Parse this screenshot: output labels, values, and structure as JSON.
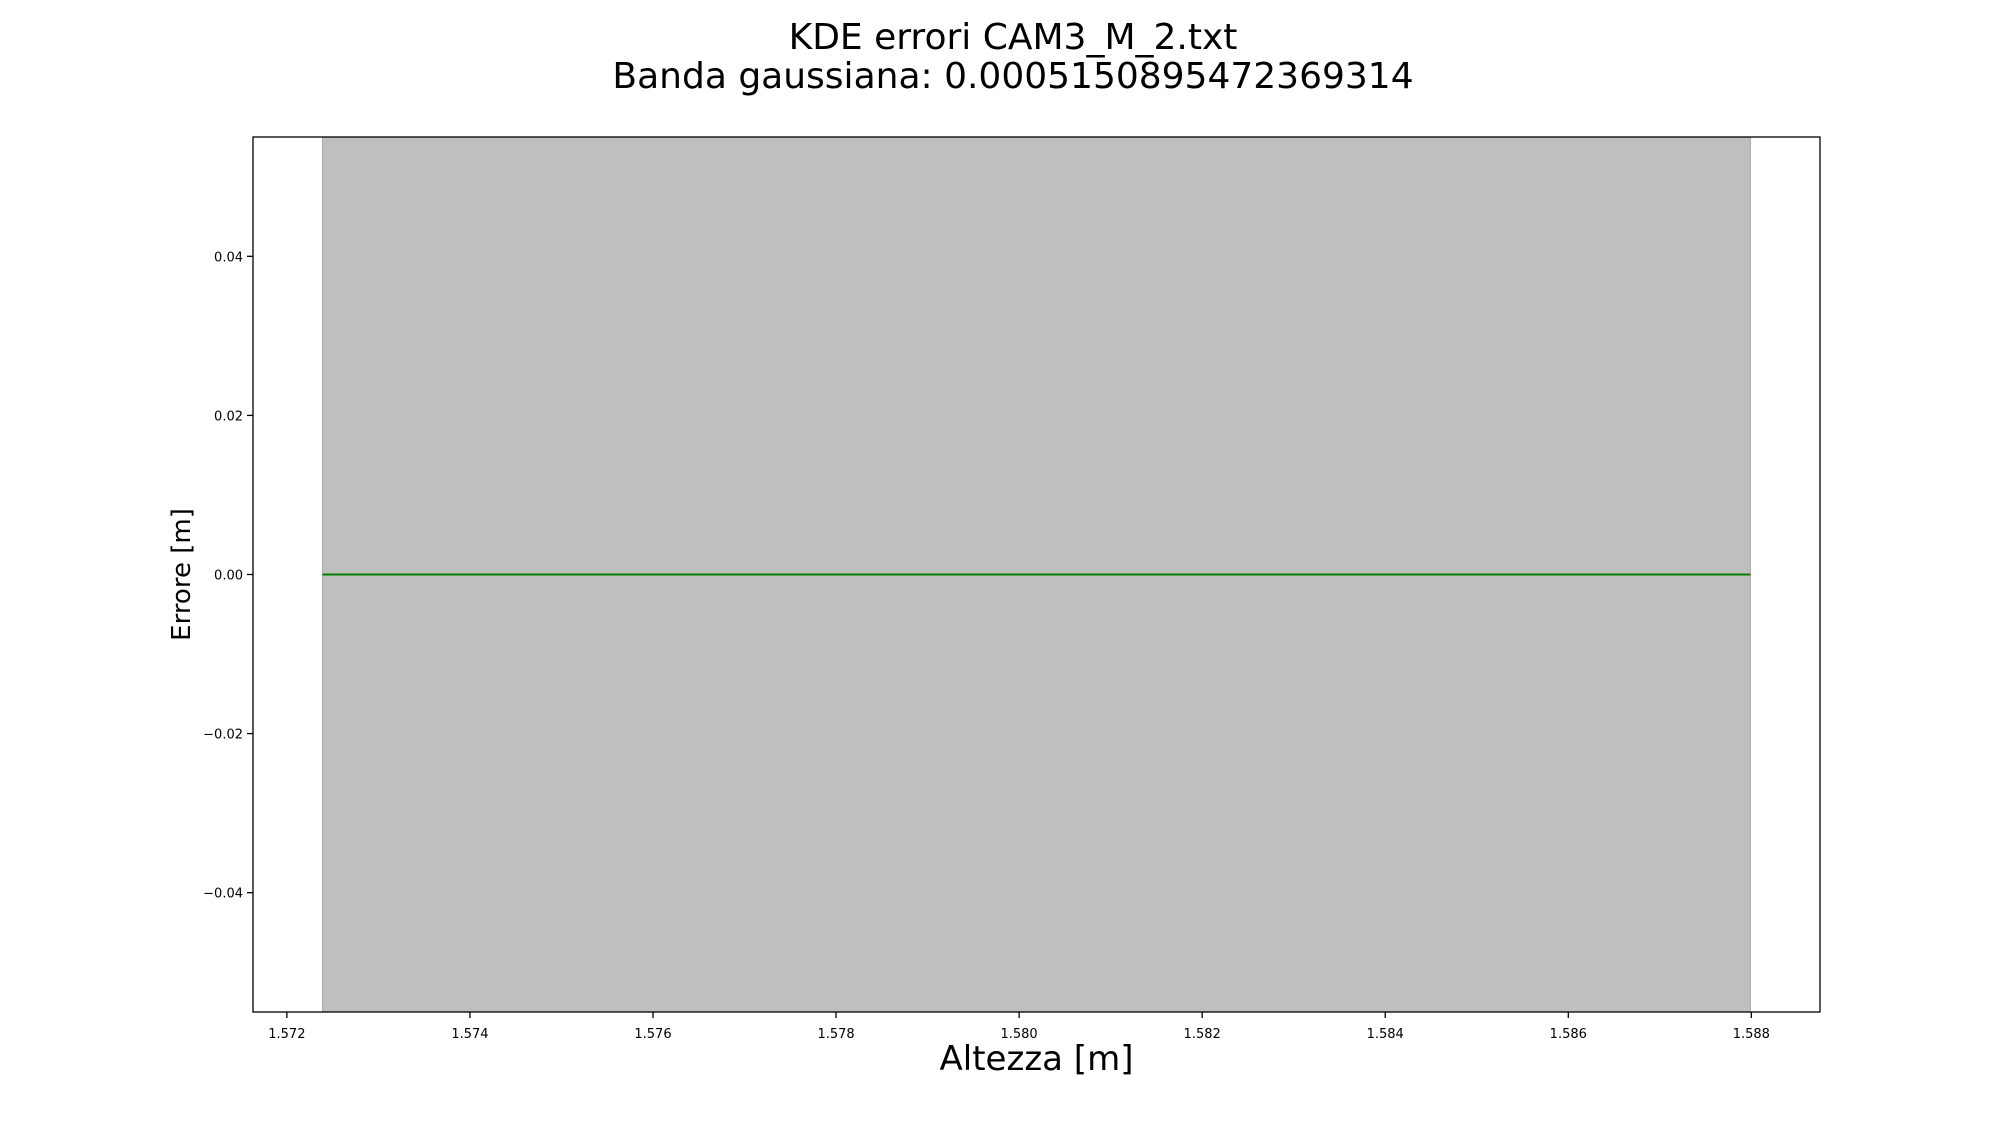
{
  "chart_data": {
    "type": "line",
    "title": "KDE errori CAM3_M_2.txt",
    "subtitle": "Banda gaussiana: 0.0005150895472369314",
    "xlabel": "Altezza [m]",
    "ylabel": "Errore [m]",
    "xlim": [
      1.57163,
      1.58875
    ],
    "ylim": [
      -0.055,
      0.055
    ],
    "xticks": [
      1.572,
      1.574,
      1.576,
      1.578,
      1.58,
      1.582,
      1.584,
      1.586,
      1.588
    ],
    "xtick_labels": [
      "1.572",
      "1.574",
      "1.576",
      "1.578",
      "1.580",
      "1.582",
      "1.584",
      "1.586",
      "1.588"
    ],
    "yticks": [
      0.04,
      0.02,
      0.0,
      -0.02,
      -0.04
    ],
    "ytick_labels": [
      "0.04",
      "0.02",
      "0.00",
      "−0.02",
      "−0.04"
    ],
    "grid": false,
    "series": [
      {
        "kind": "line",
        "color": "#008000",
        "x": [
          1.57239,
          1.58799
        ],
        "y": [
          0.0,
          0.0
        ]
      },
      {
        "kind": "band",
        "color": "#bfbfbf",
        "x": [
          1.57239,
          1.58799
        ],
        "y_low": [
          -0.055,
          -0.055
        ],
        "y_high": [
          0.055,
          0.055
        ]
      }
    ]
  }
}
